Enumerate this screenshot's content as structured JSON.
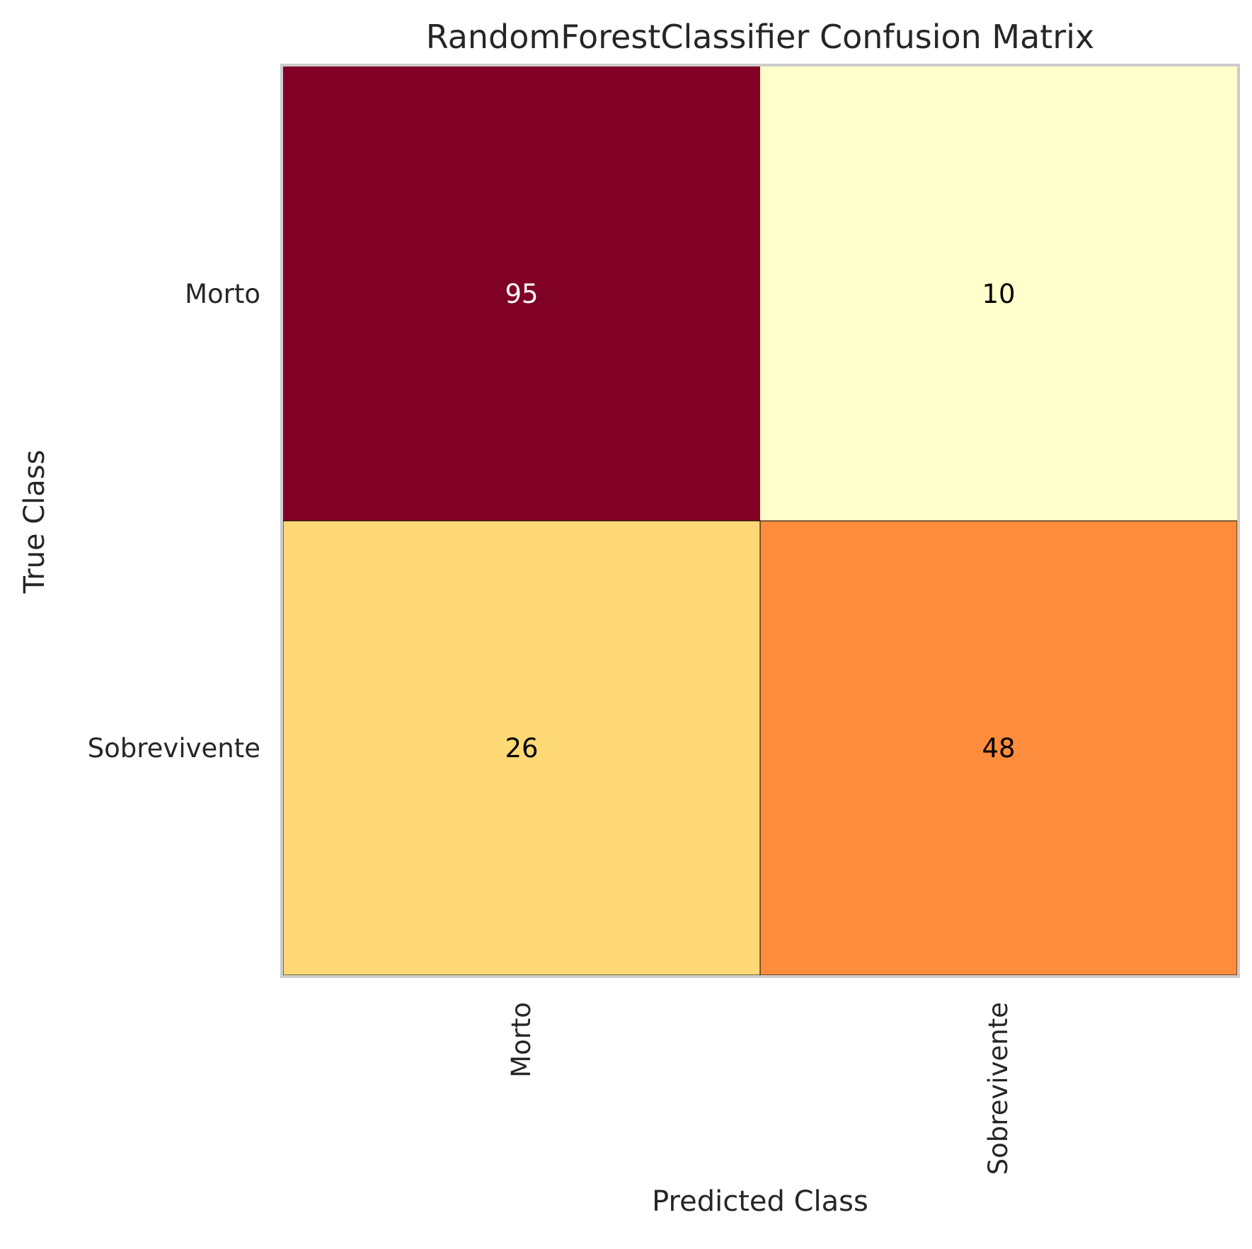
{
  "chart_data": {
    "type": "heatmap",
    "title": "RandomForestClassifier Confusion Matrix",
    "xlabel": "Predicted Class",
    "ylabel": "True Class",
    "x_categories": [
      "Morto",
      "Sobrevivente"
    ],
    "y_categories": [
      "Morto",
      "Sobrevivente"
    ],
    "values": [
      [
        95,
        10
      ],
      [
        26,
        48
      ]
    ],
    "colormap": "YlOrRd",
    "value_range": [
      10,
      95
    ],
    "cell_colors": [
      [
        "#800026",
        "#ffffcc"
      ],
      [
        "#fed976",
        "#fd8d3c"
      ]
    ],
    "label_colors": [
      [
        "#ffffff",
        "#000000"
      ],
      [
        "#000000",
        "#000000"
      ]
    ],
    "grid": false
  }
}
